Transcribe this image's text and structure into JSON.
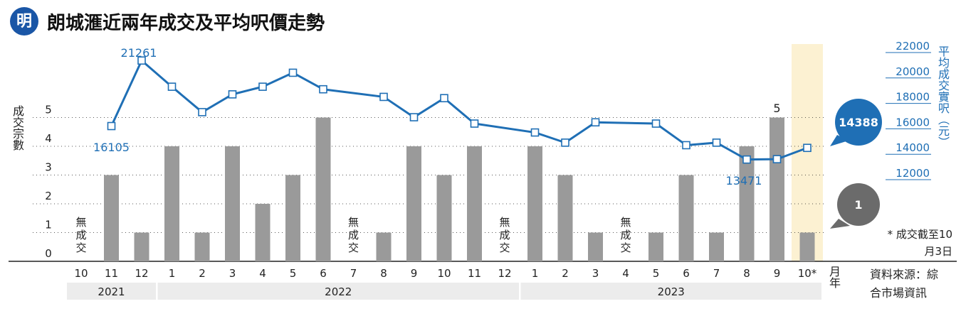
{
  "header": {
    "logo": "明",
    "title": "朗城滙近兩年成交及平均呎價走勢"
  },
  "chart_data": {
    "type": "bar+line",
    "title": "朗城滙近兩年成交及平均呎價走勢",
    "months": [
      "10",
      "11",
      "12",
      "1",
      "2",
      "3",
      "4",
      "5",
      "6",
      "7",
      "8",
      "9",
      "10",
      "11",
      "12",
      "1",
      "2",
      "3",
      "4",
      "5",
      "6",
      "7",
      "8",
      "9",
      "10*"
    ],
    "years": [
      {
        "label": "2021",
        "start": 0,
        "end": 2
      },
      {
        "label": "2022",
        "start": 3,
        "end": 14
      },
      {
        "label": "2023",
        "start": 15,
        "end": 24
      }
    ],
    "series": [
      {
        "name": "成交宗數",
        "type": "bar",
        "axis": "left",
        "color": "#9a9a9a",
        "values": [
          0,
          3,
          1,
          4,
          1,
          4,
          2,
          3,
          5,
          0,
          1,
          4,
          3,
          4,
          0,
          4,
          3,
          1,
          0,
          1,
          3,
          1,
          4,
          5,
          1
        ]
      },
      {
        "name": "平均成交實呎（元）",
        "type": "line",
        "axis": "right",
        "color": "#1f6fb5",
        "values": [
          null,
          16105,
          21261,
          19200,
          17200,
          18600,
          19200,
          20300,
          19000,
          null,
          18400,
          16800,
          18300,
          16300,
          null,
          15600,
          14800,
          16400,
          null,
          16300,
          14600,
          14800,
          13471,
          13500,
          14388
        ]
      }
    ],
    "left_axis": {
      "label": "成交宗數",
      "ylim": [
        0,
        5
      ],
      "ticks": [
        "0",
        "1",
        "2",
        "3",
        "4",
        "5"
      ]
    },
    "right_axis": {
      "label": "平均成交實呎（元）",
      "ylim": [
        12000,
        22000
      ],
      "ticks": [
        "12000",
        "14000",
        "16000",
        "18000",
        "20000",
        "22000"
      ]
    },
    "x_axis_label": "月年",
    "no_trade_label": "無成交",
    "annotations": {
      "first_price": "16105",
      "peak": "21261",
      "low": "13471",
      "max_bar": "5",
      "latest_price": "14388",
      "latest_count": "1"
    },
    "note": "* 成交截至10月3日",
    "source": "資料來源：綜合市場資訊",
    "colors": {
      "bar": "#9a9a9a",
      "line": "#1f6fb5",
      "highlight": "#fcf1d2",
      "dark_bubble": "#6b6b6b"
    }
  }
}
